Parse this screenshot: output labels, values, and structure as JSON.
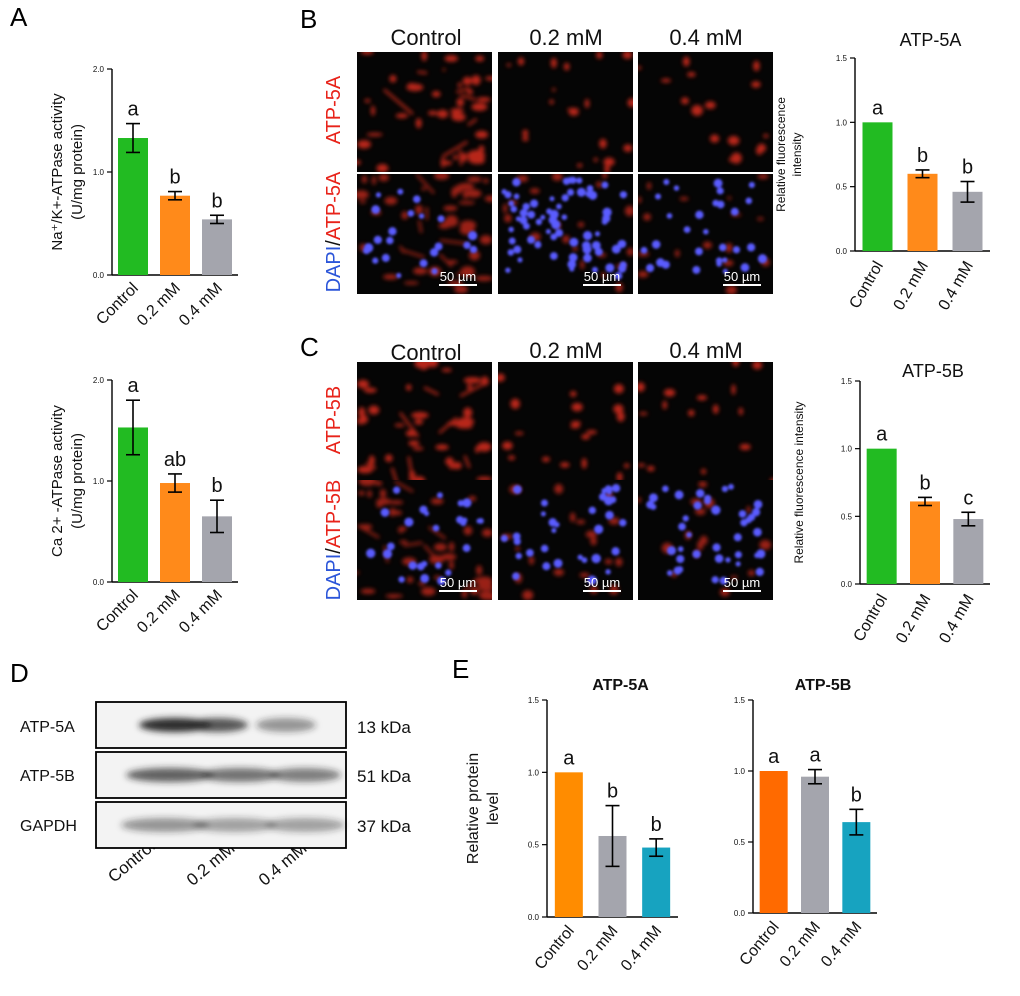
{
  "figure": {
    "panel_letters": [
      "A",
      "B",
      "C",
      "D",
      "E"
    ],
    "colors": {
      "green": "#22bb22",
      "orange": "#ff8a1a",
      "orange_e": "#ff8c00",
      "orange_e2": "#ff6a00",
      "gray": "#a4a5ad",
      "teal": "#17a3c0",
      "micro_red": "#cc2a1c",
      "nuclei_blue": "#5a5cff",
      "band_dark": "#222222"
    }
  },
  "panelB": {
    "col_labels": [
      "Control",
      "0.2 mM",
      "0.4 mM"
    ],
    "row1_label": "ATP-5A",
    "row2_label_dapi": "DAPI",
    "row2_label_sep": "/",
    "row2_label_protein": "ATP-5A",
    "scale_bar": "50 µm"
  },
  "panelC": {
    "col_labels": [
      "Control",
      "0.2 mM",
      "0.4 mM"
    ],
    "row1_label": "ATP-5B",
    "row2_label_dapi": "DAPI",
    "row2_label_sep": "/",
    "row2_label_protein": "ATP-5B",
    "scale_bar": "50 µm"
  },
  "panelD": {
    "bands": [
      {
        "label": "ATP-5A",
        "kda": "13 kDa"
      },
      {
        "label": "ATP-5B",
        "kda": "51 kDa"
      },
      {
        "label": "GAPDH",
        "kda": "37 kDa"
      }
    ],
    "lane_labels": [
      "Control",
      "0.2 mM",
      "0.4 mM"
    ]
  },
  "chart_data": [
    {
      "id": "A1",
      "type": "bar",
      "categories": [
        "Control",
        "0.2 mM",
        "0.4 mM"
      ],
      "values": [
        1.33,
        0.77,
        0.54
      ],
      "errors": [
        0.14,
        0.04,
        0.04
      ],
      "letters": [
        "a",
        "b",
        "b"
      ],
      "colors": [
        "#22bb22",
        "#ff8a1a",
        "#a4a5ad"
      ],
      "title": "",
      "ylabel_lines": [
        "Na⁺/K+-ATPase activity",
        "(U/mg protein)"
      ],
      "ylim": [
        0,
        2.0
      ],
      "yticks": [
        "0.0",
        "1.0",
        "2.0"
      ],
      "yticks_values": [
        0,
        1.0,
        2.0
      ]
    },
    {
      "id": "A2",
      "type": "bar",
      "categories": [
        "Control",
        "0.2 mM",
        "0.4 mM"
      ],
      "values": [
        1.53,
        0.98,
        0.65
      ],
      "errors": [
        0.27,
        0.09,
        0.16
      ],
      "letters": [
        "a",
        "ab",
        "b"
      ],
      "colors": [
        "#22bb22",
        "#ff8a1a",
        "#a4a5ad"
      ],
      "title": "",
      "ylabel_lines": [
        "Ca 2+ -ATPase activity",
        "(U/mg protein)"
      ],
      "ylim": [
        0,
        2.0
      ],
      "yticks": [
        "0.0",
        "1.0",
        "2.0"
      ],
      "yticks_values": [
        0,
        1.0,
        2.0
      ]
    },
    {
      "id": "B",
      "type": "bar",
      "categories": [
        "Control",
        "0.2 mM",
        "0.4 mM"
      ],
      "values": [
        1.0,
        0.6,
        0.46
      ],
      "errors": [
        0,
        0.03,
        0.08
      ],
      "letters": [
        "a",
        "b",
        "b"
      ],
      "colors": [
        "#22bb22",
        "#ff8a1a",
        "#a4a5ad"
      ],
      "title": "ATP-5A",
      "ylabel_lines": [
        "Relative fluorescence",
        "intensity"
      ],
      "ylim": [
        0,
        1.5
      ],
      "yticks": [
        "0.0",
        "0.5",
        "1.0",
        "1.5"
      ],
      "yticks_values": [
        0,
        0.5,
        1.0,
        1.5
      ]
    },
    {
      "id": "C",
      "type": "bar",
      "categories": [
        "Control",
        "0.2 mM",
        "0.4 mM"
      ],
      "values": [
        1.0,
        0.61,
        0.48
      ],
      "errors": [
        0,
        0.03,
        0.05
      ],
      "letters": [
        "a",
        "b",
        "c"
      ],
      "colors": [
        "#22bb22",
        "#ff8a1a",
        "#a4a5ad"
      ],
      "title": "ATP-5B",
      "ylabel_lines": [
        "Relative fluorescence intensity"
      ],
      "ylim": [
        0,
        1.5
      ],
      "yticks": [
        "0.0",
        "0.5",
        "1.0",
        "1.5"
      ],
      "yticks_values": [
        0,
        0.5,
        1.0,
        1.5
      ]
    },
    {
      "id": "E1",
      "type": "bar",
      "categories": [
        "Control",
        "0.2 mM",
        "0.4 mM"
      ],
      "values": [
        1.0,
        0.56,
        0.48
      ],
      "errors": [
        0,
        0.21,
        0.06
      ],
      "letters": [
        "a",
        "b",
        "b"
      ],
      "colors": [
        "#ff8c00",
        "#a4a5ad",
        "#17a3c0"
      ],
      "title": "ATP-5A",
      "ylabel_lines": [
        "Relative protein",
        "level"
      ],
      "ylim": [
        0,
        1.5
      ],
      "yticks": [
        "0.0",
        "0.5",
        "1.0",
        "1.5"
      ],
      "yticks_values": [
        0,
        0.5,
        1.0,
        1.5
      ]
    },
    {
      "id": "E2",
      "type": "bar",
      "categories": [
        "Control",
        "0.2 mM",
        "0.4 mM"
      ],
      "values": [
        1.0,
        0.96,
        0.64
      ],
      "errors": [
        0,
        0.05,
        0.09
      ],
      "letters": [
        "a",
        "a",
        "b"
      ],
      "colors": [
        "#ff6a00",
        "#a4a5ad",
        "#17a3c0"
      ],
      "title": "ATP-5B",
      "ylabel_lines": [],
      "ylim": [
        0,
        1.5
      ],
      "yticks": [
        "0.0",
        "0.5",
        "1.0",
        "1.5"
      ],
      "yticks_values": [
        0,
        0.5,
        1.0,
        1.5
      ]
    }
  ]
}
